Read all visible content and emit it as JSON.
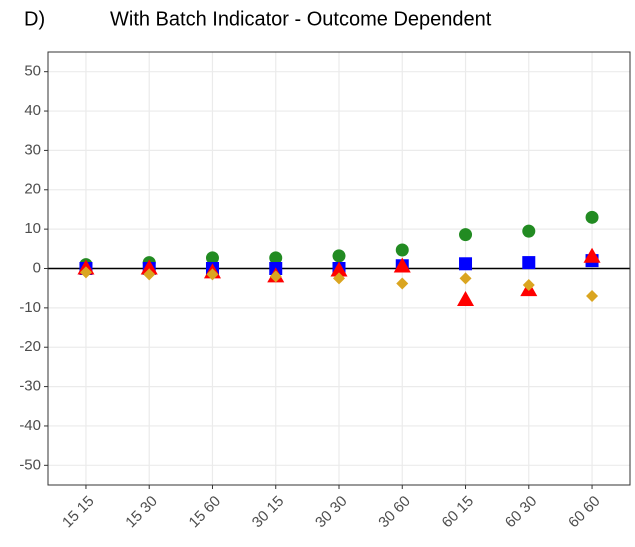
{
  "chart_data": {
    "type": "scatter",
    "panel_label": "D)",
    "title": "With Batch Indicator - Outcome Dependent",
    "categories": [
      "15 15",
      "15 30",
      "15 60",
      "30 15",
      "30 30",
      "30 60",
      "60 15",
      "60 30",
      "60 60"
    ],
    "series": [
      {
        "color": "#228b22",
        "shape": "circle",
        "values": [
          1,
          1.5,
          2.7,
          2.7,
          3.2,
          4.7,
          8.6,
          9.5,
          13
        ]
      },
      {
        "color": "#0000ff",
        "shape": "square",
        "values": [
          0,
          0,
          0,
          0,
          0,
          0.7,
          1.2,
          1.5,
          2
        ]
      },
      {
        "color": "#ff0000",
        "shape": "triangle",
        "values": [
          0,
          0,
          -1,
          -2,
          -0.5,
          0.5,
          -8,
          -5.5,
          3
        ]
      },
      {
        "color": "#daa520",
        "shape": "diamond",
        "values": [
          -1,
          -1.5,
          -1.5,
          -2,
          -2.5,
          -3.8,
          -2.5,
          -4.2,
          -7
        ]
      }
    ],
    "ylim": [
      -55,
      55
    ],
    "yticks": [
      -50,
      -40,
      -30,
      -20,
      -10,
      0,
      10,
      20,
      30,
      40,
      50
    ],
    "hline": 0,
    "grid": true
  }
}
